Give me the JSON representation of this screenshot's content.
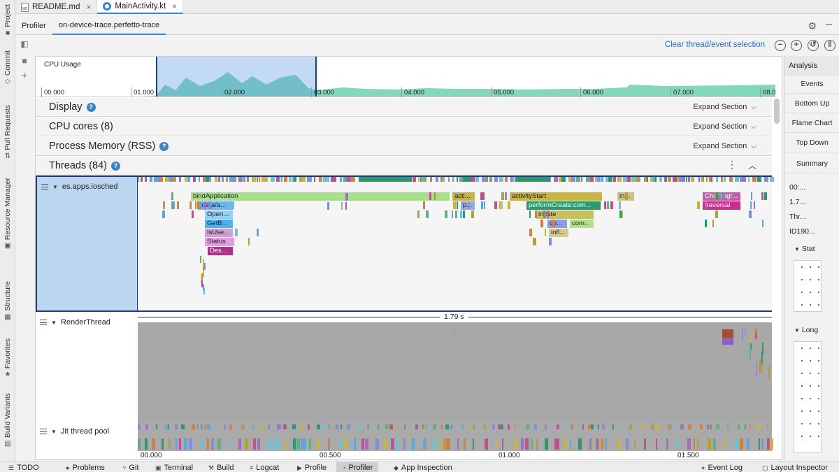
{
  "file_tabs": [
    {
      "label": "README.md",
      "icon": "markdown-file-icon"
    },
    {
      "label": "MainActivity.kt",
      "icon": "kotlin-file-icon"
    }
  ],
  "left_tools": [
    "Project",
    "Commit",
    "Pull Requests",
    "Resource Manager",
    "Structure",
    "Favorites",
    "Build Variants"
  ],
  "profiler_tabs": [
    "Profiler",
    "on-device-trace.perfetto-trace"
  ],
  "toolbar": {
    "clear_selection": "Clear thread/event selection"
  },
  "cpu": {
    "label": "CPU Usage",
    "ticks": [
      "00.000",
      "01.000",
      "02.000",
      "03.000",
      "04.000",
      "05.000",
      "06.000",
      "07.000",
      "08.0"
    ]
  },
  "sections": [
    {
      "title": "Display",
      "help": true,
      "expand": "Expand Section"
    },
    {
      "title": "CPU cores (8)",
      "help": false,
      "expand": "Expand Section"
    },
    {
      "title": "Process Memory (RSS)",
      "help": true,
      "expand": "Expand Section"
    },
    {
      "title": "Threads (84)",
      "help": true
    }
  ],
  "threads": [
    {
      "name": "es.apps.iosched"
    },
    {
      "name": "RenderThread"
    },
    {
      "name": "Jit thread pool"
    }
  ],
  "slices": [
    {
      "label": "bindApplication",
      "color": "#a8e08a"
    },
    {
      "label": "/data/a...",
      "color": "#6fb6f0"
    },
    {
      "label": "Open...",
      "color": "#8fd0f8"
    },
    {
      "label": "GetB...",
      "color": "#4db0f0"
    },
    {
      "label": "IsUse...",
      "color": "#d0a0d8"
    },
    {
      "label": "Status",
      "color": "#e0a0e0"
    },
    {
      "label": "Dex...",
      "color": "#b0308c"
    },
    {
      "label": "acti...",
      "color": "#c6b24a"
    },
    {
      "label": "p...",
      "color": "#9aa8d8"
    },
    {
      "label": "activityStart",
      "color": "#c8b440"
    },
    {
      "label": "performCreate:com...",
      "color": "#2a9a6c"
    },
    {
      "label": "inflate",
      "color": "#c8c060"
    },
    {
      "label": "co...",
      "color": "#8aa0e0"
    },
    {
      "label": "com...",
      "color": "#b0e090"
    },
    {
      "label": "infl...",
      "color": "#d8c890"
    },
    {
      "label": "in...",
      "color": "#d0c080"
    },
    {
      "label": "Choreogr...",
      "color": "#c060a8"
    },
    {
      "label": "traversal",
      "color": "#c8308c"
    }
  ],
  "duration_label": "1.79 s",
  "bottom_axis": [
    "00.000",
    "00.500",
    "01.000",
    "01.500"
  ],
  "analysis": {
    "title": "Analysis",
    "tabs": [
      "Events",
      "Bottom Up",
      "Flame Chart",
      "Top Down",
      "Summary"
    ],
    "info_rows": [
      "00:...",
      "1.7...",
      "Thr...",
      "ID190..."
    ],
    "sub_sections": [
      "Stat",
      "Long"
    ]
  },
  "status_bar": [
    {
      "label": "TODO",
      "icon": "list-icon"
    },
    {
      "label": "Problems",
      "icon": "problems-icon"
    },
    {
      "label": "Git",
      "icon": "git-icon"
    },
    {
      "label": "Terminal",
      "icon": "terminal-icon"
    },
    {
      "label": "Build",
      "icon": "build-icon"
    },
    {
      "label": "Logcat",
      "icon": "logcat-icon"
    },
    {
      "label": "Profile",
      "icon": "profile-icon"
    },
    {
      "label": "Profiler",
      "icon": "profiler-icon",
      "active": true
    },
    {
      "label": "App Inspection",
      "icon": "inspection-icon"
    },
    {
      "label": "Event Log",
      "icon": "event-log-icon"
    },
    {
      "label": "Layout Inspector",
      "icon": "layout-inspector-icon"
    }
  ],
  "colors": {
    "accent": "#3d7fd9",
    "selection": "#1e3c7c",
    "cpu_fill": "#6fcfb0"
  }
}
